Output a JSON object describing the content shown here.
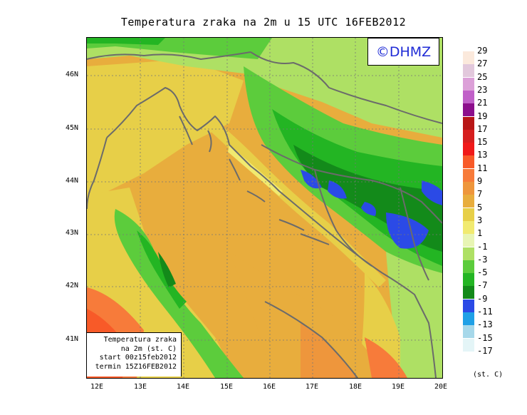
{
  "title": "Temperatura zraka na 2m u 15 UTC 16FEB2012",
  "logo": "©DHMZ",
  "info": {
    "line1": "Temperatura zraka",
    "line2": "na 2m (st. C)",
    "line3": "start 00z15feb2012",
    "line4": "termin 15Z16FEB2012"
  },
  "lat_ticks": [
    "46N",
    "45N",
    "44N",
    "43N",
    "42N",
    "41N"
  ],
  "lon_ticks": [
    "12E",
    "13E",
    "14E",
    "15E",
    "16E",
    "17E",
    "18E",
    "19E",
    "20E"
  ],
  "legend": {
    "unit": "(st. C)",
    "items": [
      {
        "label": "29",
        "color": "#fbe9dc"
      },
      {
        "label": "27",
        "color": "#e2c8dc"
      },
      {
        "label": "25",
        "color": "#dca0d8"
      },
      {
        "label": "23",
        "color": "#c060c8"
      },
      {
        "label": "21",
        "color": "#8c0f8c"
      },
      {
        "label": "19",
        "color": "#b81616"
      },
      {
        "label": "17",
        "color": "#d61e1e"
      },
      {
        "label": "15",
        "color": "#f01919"
      },
      {
        "label": "13",
        "color": "#f85a28"
      },
      {
        "label": "11",
        "color": "#f77b3a"
      },
      {
        "label": "9",
        "color": "#ee963c"
      },
      {
        "label": "7",
        "color": "#e8ad3d"
      },
      {
        "label": "5",
        "color": "#e7cf48"
      },
      {
        "label": "3",
        "color": "#f1ea70"
      },
      {
        "label": "1",
        "color": "#e8f5b4"
      },
      {
        "label": "-1",
        "color": "#aee064"
      },
      {
        "label": "-3",
        "color": "#5ccc3c"
      },
      {
        "label": "-5",
        "color": "#23b523"
      },
      {
        "label": "-7",
        "color": "#138a1a"
      },
      {
        "label": "-9",
        "color": "#2b4ae6"
      },
      {
        "label": "-11",
        "color": "#1fa0e6"
      },
      {
        "label": "-13",
        "color": "#a6d8ea"
      },
      {
        "label": "-15",
        "color": "#e4f5f7"
      },
      {
        "label": "-17",
        "color": ""
      }
    ]
  }
}
